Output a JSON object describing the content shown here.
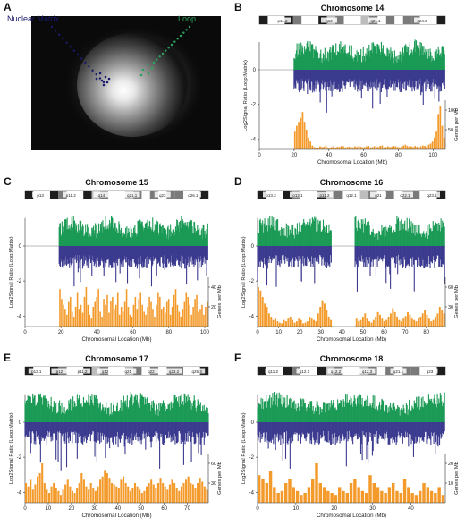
{
  "panel_letters": [
    "A",
    "B",
    "C",
    "D",
    "E",
    "F"
  ],
  "micrograph": {
    "label_nuclear_matrix": "Nuclear Matrix",
    "label_loop": "Loop",
    "matrix_color": "#1a1a6e",
    "loop_color": "#2ca25f"
  },
  "colors": {
    "loop_signal": "#1a9a55",
    "matrix_signal": "#3b3a8f",
    "genes_bar": "#f39a2b",
    "axis": "#333333"
  },
  "chart_data": [
    {
      "type": "bar",
      "panel": "B",
      "title": "Chromosome 14",
      "ideogram_bands": [
        "p11.2",
        "q12",
        "q21.1",
        "q24.3"
      ],
      "ylabel_left": "Log2Signal Ratio (Loop:Matrix)",
      "ylabel_right": "Genes per Mb",
      "xlabel": "Chromosomal Location (Mb)",
      "x_ticks": [
        0,
        20,
        40,
        60,
        80,
        100
      ],
      "y_ticks_left": [
        0,
        -2,
        -4
      ],
      "y_ticks_right": [
        50,
        100
      ],
      "xlim": [
        0,
        107
      ],
      "signal_start": 20,
      "gap_ranges": [],
      "genes_per_mb": [
        45,
        60,
        70,
        80,
        95,
        70,
        50,
        30,
        20,
        10,
        6,
        5,
        4,
        8,
        6,
        7,
        10,
        5,
        4,
        6,
        8,
        5,
        7,
        6,
        9,
        8,
        5,
        6,
        7,
        6,
        5,
        8,
        6,
        9,
        7,
        5,
        6,
        8,
        9,
        5,
        6,
        8,
        7,
        6,
        9,
        10,
        5,
        6,
        8,
        6,
        7,
        9,
        8,
        6,
        5,
        7,
        10,
        12,
        9,
        7,
        8,
        6,
        9,
        7,
        5,
        8,
        10,
        9,
        7,
        12,
        15,
        20,
        30,
        45,
        90,
        110,
        60,
        30
      ]
    },
    {
      "type": "bar",
      "panel": "C",
      "title": "Chromosome 15",
      "ideogram_bands": [
        "p13",
        "p11.2",
        "q14",
        "q21.1",
        "q23",
        "q26.1"
      ],
      "ylabel_left": "Log2Signal Ratio (Loop:Matrix)",
      "ylabel_right": "Genes per Mb",
      "xlabel": "Chromosomal Location (Mb)",
      "x_ticks": [
        0,
        20,
        40,
        60,
        80,
        100
      ],
      "y_ticks_left": [
        0,
        -2,
        -4
      ],
      "y_ticks_right": [
        20,
        40
      ],
      "xlim": [
        0,
        102
      ],
      "signal_start": 19,
      "gap_ranges": [],
      "genes_per_mb": [
        38,
        28,
        22,
        18,
        12,
        25,
        30,
        15,
        10,
        20,
        35,
        18,
        22,
        14,
        30,
        40,
        22,
        12,
        8,
        20,
        25,
        30,
        38,
        15,
        10,
        28,
        22,
        32,
        14,
        26,
        30,
        18,
        22,
        35,
        12,
        20,
        15,
        25,
        38,
        20,
        12,
        10,
        22,
        30,
        18,
        28,
        35,
        22,
        15,
        12,
        20,
        30,
        25,
        18,
        10,
        22,
        35,
        30,
        18,
        20,
        14,
        25,
        28,
        12,
        20,
        32,
        38,
        22,
        15,
        10,
        18,
        25,
        35,
        30,
        22,
        12,
        20,
        28,
        32,
        15,
        18,
        22,
        12,
        20,
        25
      ]
    },
    {
      "type": "bar",
      "panel": "D",
      "title": "Chromosome 16",
      "ideogram_bands": [
        "p13.3",
        "p12.1",
        "p11.2",
        "q12.1",
        "q21",
        "q22.1",
        "q23.1"
      ],
      "ylabel_left": "Log2Signal Ratio (Loop:Matrix)",
      "ylabel_right": "Genes per Mb",
      "xlabel": "Chromosomal Location (Mb)",
      "x_ticks": [
        0,
        10,
        20,
        30,
        40,
        50,
        60,
        70,
        80
      ],
      "y_ticks_left": [
        0,
        -2,
        -4
      ],
      "y_ticks_right": [
        30,
        60
      ],
      "xlim": [
        0,
        89
      ],
      "signal_start": 0,
      "gap_ranges": [
        [
          35,
          46
        ]
      ],
      "genes_per_mb": [
        60,
        55,
        45,
        35,
        30,
        20,
        15,
        10,
        12,
        8,
        6,
        5,
        10,
        8,
        12,
        15,
        10,
        6,
        8,
        12,
        10,
        5,
        6,
        8,
        15,
        12,
        10,
        8,
        20,
        30,
        40,
        35,
        25,
        15,
        10,
        0,
        0,
        0,
        0,
        0,
        0,
        0,
        0,
        0,
        0,
        0,
        12,
        8,
        10,
        15,
        20,
        12,
        8,
        6,
        10,
        15,
        22,
        18,
        12,
        8,
        10,
        15,
        20,
        28,
        22,
        15,
        10,
        8,
        12,
        16,
        22,
        18,
        12,
        10,
        8,
        12,
        15,
        20,
        25,
        18,
        12,
        8,
        10,
        15,
        20,
        30,
        25,
        20
      ]
    },
    {
      "type": "bar",
      "panel": "E",
      "title": "Chromosome 17",
      "ideogram_bands": [
        "p13.1",
        "p12",
        "p11.2",
        "q12",
        "q21",
        "q22",
        "q23.2",
        "q25.3"
      ],
      "ylabel_left": "Log2Signal Ratio (Loop:Matrix)",
      "ylabel_right": "Genes per Mb",
      "xlabel": "Chromosomal Location (Mb)",
      "x_ticks": [
        0,
        10,
        20,
        30,
        40,
        50,
        60,
        70
      ],
      "y_ticks_left": [
        0,
        -2,
        -4
      ],
      "y_ticks_right": [
        30,
        60
      ],
      "xlim": [
        0,
        79
      ],
      "signal_start": 0,
      "gap_ranges": [],
      "genes_per_mb": [
        30,
        25,
        35,
        20,
        28,
        40,
        45,
        60,
        30,
        20,
        15,
        25,
        30,
        22,
        18,
        12,
        20,
        28,
        35,
        25,
        18,
        15,
        22,
        30,
        45,
        35,
        25,
        20,
        30,
        22,
        18,
        25,
        35,
        40,
        50,
        45,
        38,
        30,
        28,
        25,
        22,
        35,
        40,
        30,
        25,
        18,
        22,
        30,
        25,
        20,
        15,
        18,
        25,
        30,
        35,
        28,
        22,
        30,
        38,
        30,
        25,
        20,
        28,
        35,
        30,
        22,
        18,
        25,
        30,
        35,
        40,
        30,
        28,
        22,
        30,
        38,
        32,
        25,
        20
      ]
    },
    {
      "type": "bar",
      "panel": "F",
      "title": "Chromosome 18",
      "ideogram_bands": [
        "q11.2",
        "q12.1",
        "q12.2",
        "q12.3",
        "q21.1",
        "q23"
      ],
      "ylabel_left": "Log2Signal Ratio (Loop:Matrix)",
      "ylabel_right": "Genes per Mb",
      "xlabel": "Chromosomal Location (Mb)",
      "x_ticks": [
        0,
        10,
        20,
        30,
        40
      ],
      "y_ticks_left": [
        0,
        -2,
        -4
      ],
      "y_ticks_right": [
        10,
        20
      ],
      "xlim": [
        0,
        49
      ],
      "signal_start": 0,
      "gap_ranges": [],
      "genes_per_mb": [
        14,
        12,
        10,
        16,
        8,
        5,
        6,
        10,
        12,
        8,
        6,
        4,
        5,
        8,
        12,
        20,
        10,
        8,
        6,
        5,
        4,
        8,
        6,
        5,
        10,
        12,
        8,
        6,
        5,
        14,
        10,
        8,
        6,
        5,
        8,
        10,
        6,
        5,
        12,
        8,
        5,
        4,
        6,
        10,
        8,
        6,
        5,
        8,
        4
      ]
    }
  ]
}
